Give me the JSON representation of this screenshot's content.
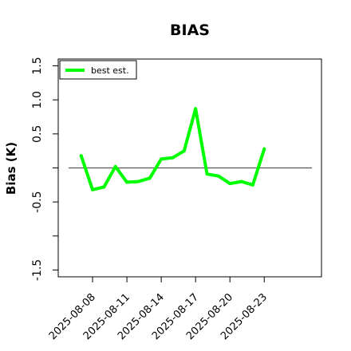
{
  "chart_data": {
    "type": "line",
    "title": "BIAS",
    "xlabel": "",
    "ylabel": "Bias (K)",
    "ylim": [
      -1.6,
      1.6
    ],
    "yticks": [
      -1.5,
      -1.0,
      -0.5,
      0.0,
      0.5,
      1.0,
      1.5
    ],
    "ytick_labels": [
      "-1.5",
      "",
      "-0.5",
      "",
      "0.5",
      "1.0",
      "1.5"
    ],
    "xlim_index": [
      -2,
      21
    ],
    "xtick_index": [
      1,
      4,
      7,
      10,
      13,
      16
    ],
    "xtick_labels": [
      "2025-08-08",
      "2025-08-11",
      "2025-08-14",
      "2025-08-17",
      "2025-08-20",
      "2025-08-23"
    ],
    "reference_line": 0.0,
    "legend_position": "top-left",
    "series": [
      {
        "name": "best est.",
        "color": "#00ff00",
        "x": [
          "2025-08-07",
          "2025-08-08",
          "2025-08-09",
          "2025-08-10",
          "2025-08-11",
          "2025-08-12",
          "2025-08-13",
          "2025-08-14",
          "2025-08-15",
          "2025-08-16",
          "2025-08-17",
          "2025-08-18",
          "2025-08-19",
          "2025-08-20",
          "2025-08-21",
          "2025-08-22",
          "2025-08-23"
        ],
        "values": [
          0.18,
          -0.32,
          -0.28,
          0.02,
          -0.21,
          -0.2,
          -0.15,
          0.13,
          0.15,
          0.25,
          0.87,
          -0.09,
          -0.12,
          -0.23,
          -0.2,
          -0.25,
          0.28
        ]
      }
    ]
  }
}
